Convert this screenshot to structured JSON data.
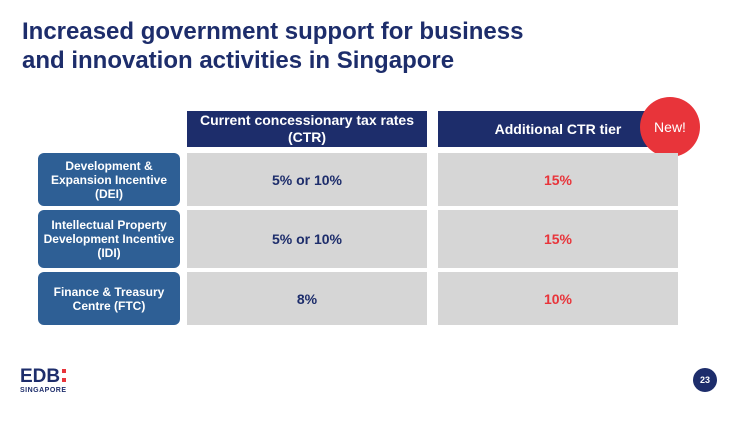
{
  "title": {
    "line1": "Increased government support for business",
    "line2": "and innovation activities in Singapore"
  },
  "columns": {
    "ctr": "Current concessionary tax rates (CTR)",
    "additional": "Additional CTR tier"
  },
  "badge": "New!",
  "rows": [
    {
      "label": "Development & Expansion Incentive (DEI)",
      "ctr": "5% or 10%",
      "additional": "15%"
    },
    {
      "label": "Intellectual Property Development Incentive (IDI)",
      "ctr": "5% or 10%",
      "additional": "15%"
    },
    {
      "label": "Finance & Treasury Centre (FTC)",
      "ctr": "8%",
      "additional": "10%"
    }
  ],
  "logo": {
    "main": "EDB",
    "sub": "SINGAPORE"
  },
  "page_number": "23",
  "colors": {
    "navy": "#1d2d6b",
    "row_blue": "#2e5f95",
    "accent_red": "#e8343a",
    "cell_grey": "#d6d6d6"
  }
}
